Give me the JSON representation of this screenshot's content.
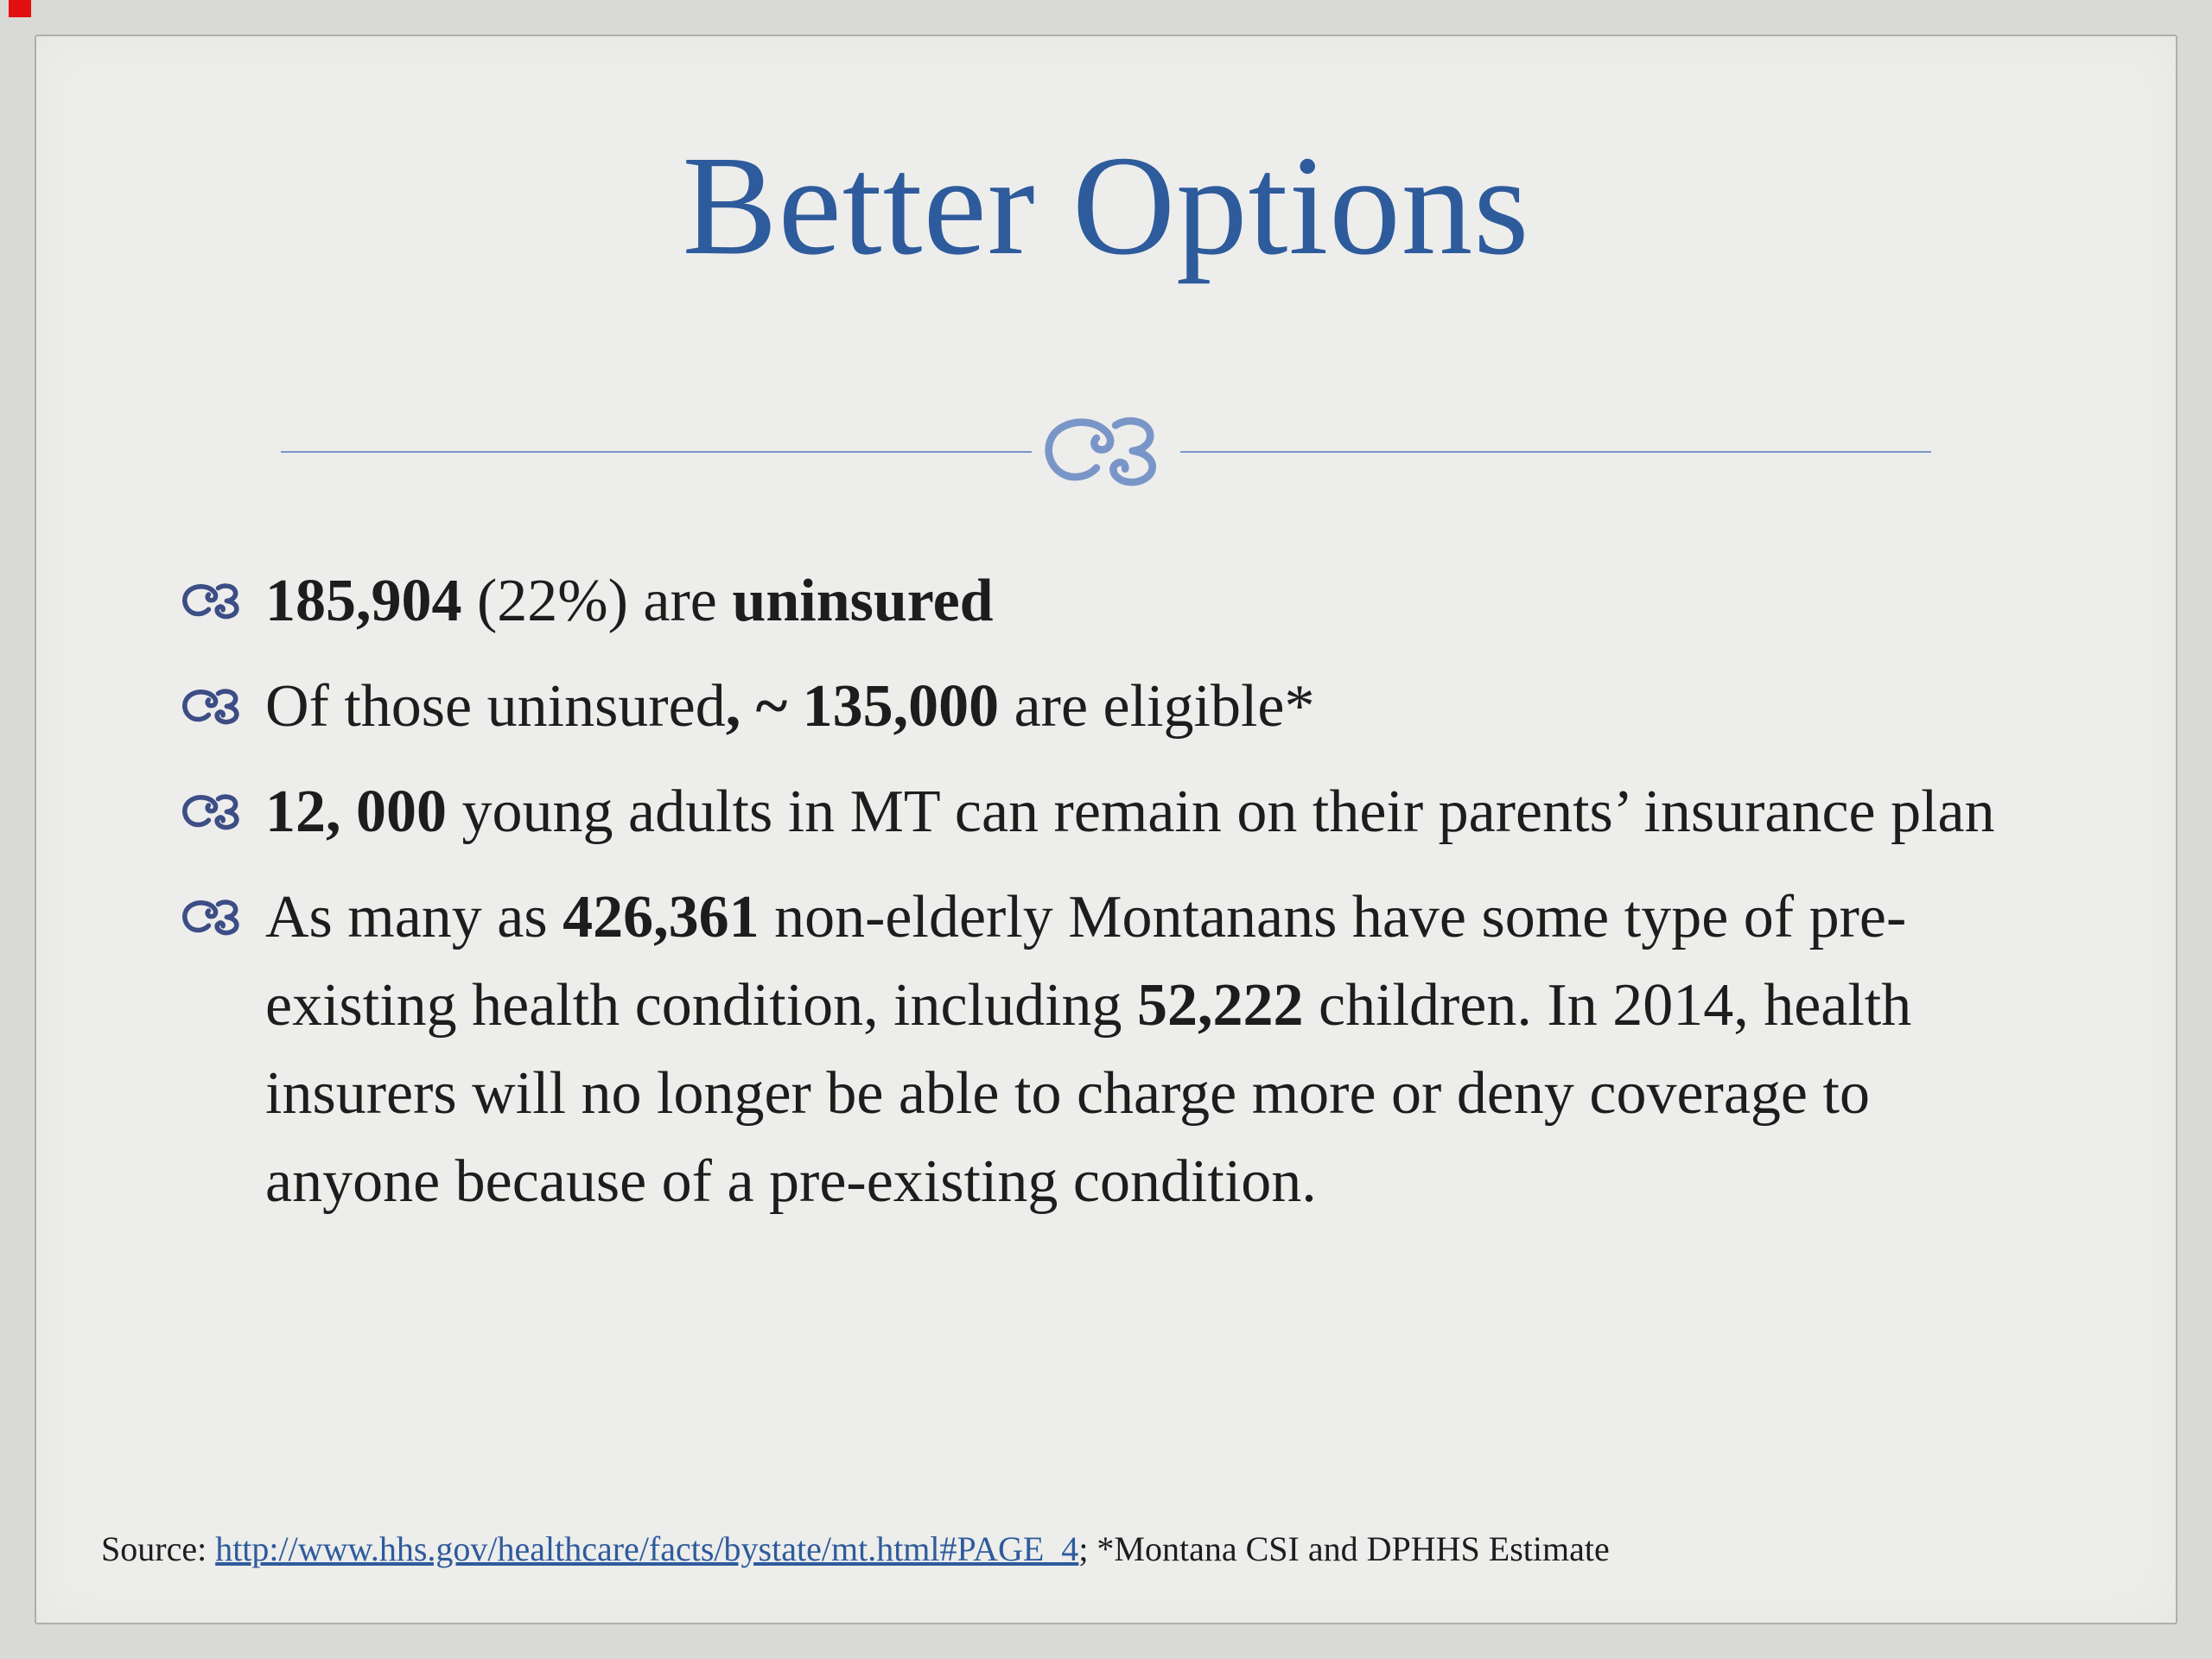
{
  "slide": {
    "title": "Better Options",
    "bullets": [
      {
        "segments": [
          {
            "text": "185,904",
            "bold": true
          },
          {
            "text": " (22%) are ",
            "bold": false
          },
          {
            "text": "uninsured",
            "bold": true
          }
        ]
      },
      {
        "segments": [
          {
            "text": "Of those uninsured",
            "bold": false
          },
          {
            "text": ", ~ 135,000",
            "bold": true
          },
          {
            "text": " are eligible*",
            "bold": false
          }
        ]
      },
      {
        "segments": [
          {
            "text": "12, 000",
            "bold": true
          },
          {
            "text": " young adults in MT can remain on their parents’ insurance plan",
            "bold": false
          }
        ]
      },
      {
        "segments": [
          {
            "text": "As many as ",
            "bold": false
          },
          {
            "text": "426,361",
            "bold": true
          },
          {
            "text": " non-elderly Montanans have some type of pre-existing health condition, including ",
            "bold": false
          },
          {
            "text": "52,222",
            "bold": true
          },
          {
            "text": " children. In 2014, health insurers will no longer be able to charge more or deny coverage to anyone because of a pre-existing condition.",
            "bold": false
          }
        ]
      }
    ],
    "source": {
      "prefix": "Source: ",
      "link_text": "http://www.hhs.gov/healthcare/facts/bystate/mt.html#PAGE_4",
      "suffix": "; *Montana CSI and DPHHS Estimate"
    }
  },
  "icons": {
    "divider": "flourish-swirl-icon",
    "bullet": "flourish-bullet-icon"
  },
  "colors": {
    "bg": "#d9d9d7",
    "card": "#ededeb",
    "border": "#aeaeac",
    "title": "#2e5b9c",
    "divider": "#7a96c8",
    "bullet": "#3d4d85",
    "text": "#1d1d1d",
    "link": "#2e5b9c",
    "artifact": "#e10f0f"
  }
}
